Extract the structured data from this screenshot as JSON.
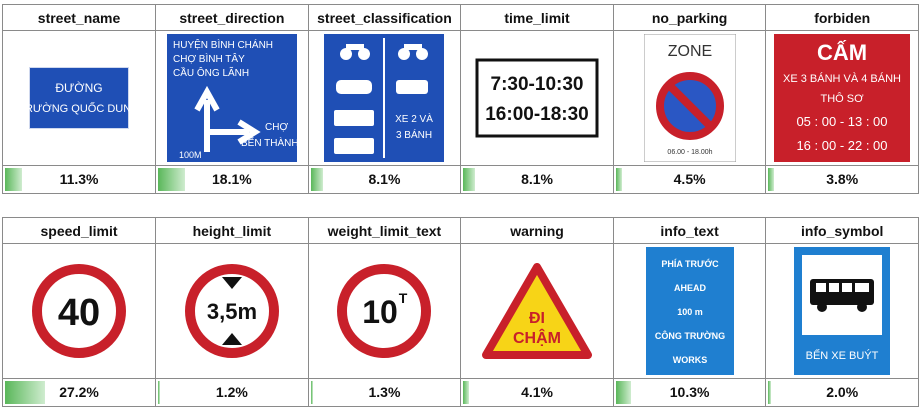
{
  "chart_data": {
    "type": "table",
    "categories": [
      "street_name",
      "street_direction",
      "street_classification",
      "time_limit",
      "no_parking",
      "forbiden",
      "speed_limit",
      "height_limit",
      "weight_limit_text",
      "warning",
      "info_text",
      "info_symbol"
    ],
    "values": [
      11.3,
      18.1,
      8.1,
      8.1,
      4.5,
      3.8,
      27.2,
      1.2,
      1.3,
      4.1,
      10.3,
      2.0
    ],
    "labels": [
      "11.3%",
      "18.1%",
      "8.1%",
      "8.1%",
      "4.5%",
      "3.8%",
      "27.2%",
      "1.2%",
      "1.3%",
      "4.1%",
      "10.3%",
      "2.0%"
    ],
    "bar_scale_max": 100,
    "bar_color": "#5ab75a"
  },
  "signs": {
    "street_name": {
      "line1": "ĐƯỜNG",
      "line2": "TRƯỜNG QUỐC DUNG"
    },
    "street_direction": {
      "line1": "HUYỆN BÌNH CHÁNH",
      "line2": "CHỢ BÌNH TÂY",
      "line3": "CẦU ÔNG LÃNH",
      "line4": "CHỢ",
      "line5": "BẾN THÀNH",
      "distance": "100M"
    },
    "street_classification": {
      "text1": "XE 2 VÀ",
      "text2": "3 BÁNH"
    },
    "time_limit": {
      "line1": "7:30-10:30",
      "line2": "16:00-18:30"
    },
    "no_parking": {
      "zone": "ZONE",
      "hours": "06.00 - 18.00h"
    },
    "forbiden": {
      "title": "CẤM",
      "line1": "XE 3 BÁNH VÀ 4 BÁNH",
      "line2": "THÔ SƠ",
      "line3": "05 : 00 - 13 : 00",
      "line4": "16 : 00 - 22 : 00"
    },
    "speed_limit": {
      "value": "40"
    },
    "height_limit": {
      "value": "3,5m"
    },
    "weight_limit_text": {
      "value": "10",
      "unit": "T"
    },
    "warning": {
      "line1": "ĐI",
      "line2": "CHẬM"
    },
    "info_text": {
      "line1": "PHÍA TRƯỚC",
      "line2": "AHEAD",
      "line3": "100 m",
      "line4": "CÔNG TRƯỜNG",
      "line5": "WORKS"
    },
    "info_symbol": {
      "caption": "BẾN XE BUÝT"
    }
  },
  "colors": {
    "sign_blue": "#1f4fb5",
    "sign_red": "#c8202a",
    "sign_yellow": "#f7d417"
  }
}
